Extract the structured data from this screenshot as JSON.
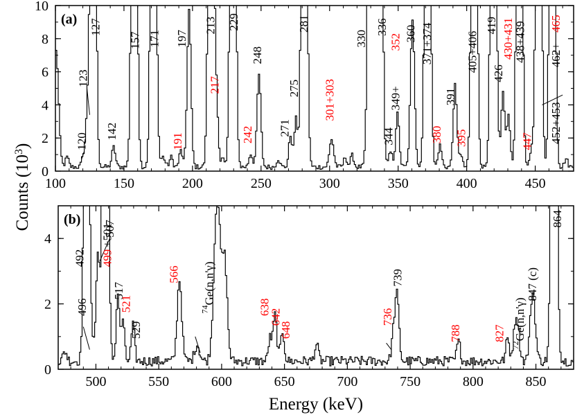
{
  "ylabel": "Counts (10",
  "ylabel_sup": "3",
  "ylabel_close": ")",
  "colors": {
    "axis": "#000000",
    "spectrum": "#000000",
    "red_label": "#ff0000",
    "black_label": "#000000"
  },
  "chart_data": [
    {
      "type": "line",
      "panel_label": "(a)",
      "xlabel": "",
      "ylabel": "Counts (10^3)",
      "xlim": [
        100,
        478
      ],
      "ylim": [
        0,
        10
      ],
      "xticks": [
        100,
        150,
        200,
        250,
        300,
        350,
        400,
        450
      ],
      "yticks": [
        0,
        2,
        4,
        6,
        8,
        10
      ],
      "series": [
        {
          "name": "gamma-ray spectrum (a)",
          "background": 0.25
        }
      ],
      "peaks": [
        {
          "e": 100,
          "h": 7.0,
          "w": 1.8
        },
        {
          "e": 108,
          "h": 0.6,
          "w": 1.2
        },
        {
          "e": 120,
          "h": 0.7,
          "w": 1.2
        },
        {
          "e": 123,
          "h": 3.2,
          "w": 1.3
        },
        {
          "e": 127,
          "h": 40,
          "w": 1.6
        },
        {
          "e": 142,
          "h": 1.2,
          "w": 1.3
        },
        {
          "e": 157,
          "h": 40,
          "w": 1.6
        },
        {
          "e": 171,
          "h": 40,
          "w": 1.6
        },
        {
          "e": 178,
          "h": 0.6,
          "w": 1.5
        },
        {
          "e": 184,
          "h": 0.6,
          "w": 1.2
        },
        {
          "e": 191,
          "h": 1.0,
          "w": 1.2
        },
        {
          "e": 197,
          "h": 9.5,
          "w": 1.4
        },
        {
          "e": 213,
          "h": 40,
          "w": 1.6
        },
        {
          "e": 217,
          "h": 3.7,
          "w": 1.2
        },
        {
          "e": 222,
          "h": 0.6,
          "w": 1.2
        },
        {
          "e": 229,
          "h": 40,
          "w": 1.6
        },
        {
          "e": 242,
          "h": 0.8,
          "w": 1.3
        },
        {
          "e": 248,
          "h": 5.6,
          "w": 1.4
        },
        {
          "e": 262,
          "h": 0.5,
          "w": 1.2
        },
        {
          "e": 271,
          "h": 1.9,
          "w": 1.2
        },
        {
          "e": 275,
          "h": 2.9,
          "w": 1.2
        },
        {
          "e": 281,
          "h": 40,
          "w": 1.6
        },
        {
          "e": 301,
          "h": 1.7,
          "w": 1.5
        },
        {
          "e": 311,
          "h": 0.6,
          "w": 1.2
        },
        {
          "e": 316,
          "h": 0.7,
          "w": 1.2
        },
        {
          "e": 330,
          "h": 40,
          "w": 1.8
        },
        {
          "e": 336,
          "h": 40,
          "w": 1.6
        },
        {
          "e": 344,
          "h": 0.9,
          "w": 1.3
        },
        {
          "e": 349,
          "h": 3.2,
          "w": 1.3
        },
        {
          "e": 360,
          "h": 8.8,
          "w": 1.5
        },
        {
          "e": 371,
          "h": 40,
          "w": 1.6
        },
        {
          "e": 380,
          "h": 1.3,
          "w": 1.3
        },
        {
          "e": 391,
          "h": 4.9,
          "w": 1.3
        },
        {
          "e": 395,
          "h": 0.8,
          "w": 1.2
        },
        {
          "e": 405,
          "h": 40,
          "w": 1.6
        },
        {
          "e": 419,
          "h": 40,
          "w": 1.6
        },
        {
          "e": 426,
          "h": 4.5,
          "w": 1.3
        },
        {
          "e": 430,
          "h": 3.1,
          "w": 1.2
        },
        {
          "e": 438,
          "h": 40,
          "w": 1.6
        },
        {
          "e": 447,
          "h": 1.0,
          "w": 1.2
        },
        {
          "e": 452,
          "h": 40,
          "w": 1.6
        },
        {
          "e": 462,
          "h": 40,
          "w": 1.6
        },
        {
          "e": 472,
          "h": 0.5,
          "w": 1.2
        }
      ],
      "annotations": [
        {
          "text": "120",
          "e": 120,
          "y": 1.8,
          "color": "black",
          "rot": -90
        },
        {
          "text": "123",
          "e": 121,
          "y": 5.6,
          "color": "black",
          "rot": -90
        },
        {
          "text": "127",
          "e": 130,
          "y": 8.7,
          "color": "black",
          "rot": -90
        },
        {
          "text": "142",
          "e": 142,
          "y": 2.4,
          "color": "black",
          "rot": -90
        },
        {
          "text": "157",
          "e": 159,
          "y": 7.9,
          "color": "black",
          "rot": -90
        },
        {
          "text": "171",
          "e": 173,
          "y": 8.0,
          "color": "black",
          "rot": -90
        },
        {
          "text": "191",
          "e": 190,
          "y": 1.8,
          "color": "red",
          "rot": -90
        },
        {
          "text": "197",
          "e": 193,
          "y": 8.0,
          "color": "black",
          "rot": -90
        },
        {
          "text": "213",
          "e": 214,
          "y": 8.8,
          "color": "black",
          "rot": -90
        },
        {
          "text": "217",
          "e": 217,
          "y": 5.2,
          "color": "red",
          "rot": -90
        },
        {
          "text": "229",
          "e": 231,
          "y": 9.0,
          "color": "black",
          "rot": -90
        },
        {
          "text": "242",
          "e": 241,
          "y": 2.2,
          "color": "red",
          "rot": -90
        },
        {
          "text": "248",
          "e": 248,
          "y": 7.0,
          "color": "black",
          "rot": -90
        },
        {
          "text": "271",
          "e": 268,
          "y": 2.6,
          "color": "black",
          "rot": -90
        },
        {
          "text": "275",
          "e": 275,
          "y": 5.0,
          "color": "black",
          "rot": -90
        },
        {
          "text": "281",
          "e": 282,
          "y": 8.9,
          "color": "black",
          "rot": -90
        },
        {
          "text": "301+303",
          "e": 301,
          "y": 4.3,
          "color": "red",
          "rot": -90
        },
        {
          "text": "330",
          "e": 324,
          "y": 8.0,
          "color": "black",
          "rot": -90
        },
        {
          "text": "336",
          "e": 339,
          "y": 8.7,
          "color": "black",
          "rot": -90
        },
        {
          "text": "344",
          "e": 344,
          "y": 2.1,
          "color": "black",
          "rot": -90
        },
        {
          "text": "349+",
          "e": 349,
          "y": 4.4,
          "color": "black",
          "rot": -90
        },
        {
          "text": "352",
          "e": 349,
          "y": 7.8,
          "color": "red",
          "rot": -90
        },
        {
          "text": "360",
          "e": 360,
          "y": 8.3,
          "color": "black",
          "rot": -90
        },
        {
          "text": "371+374",
          "e": 372,
          "y": 7.7,
          "color": "black",
          "rot": -90
        },
        {
          "text": "380",
          "e": 379,
          "y": 2.2,
          "color": "red",
          "rot": -90
        },
        {
          "text": "391",
          "e": 389,
          "y": 4.5,
          "color": "black",
          "rot": -90
        },
        {
          "text": "395",
          "e": 397,
          "y": 2.0,
          "color": "red",
          "rot": -90
        },
        {
          "text": "405+406",
          "e": 405,
          "y": 7.2,
          "color": "black",
          "rot": -90
        },
        {
          "text": "419",
          "e": 419,
          "y": 8.8,
          "color": "black",
          "rot": -90
        },
        {
          "text": "426",
          "e": 424,
          "y": 5.9,
          "color": "black",
          "rot": -90
        },
        {
          "text": "430+431",
          "e": 431,
          "y": 8.0,
          "color": "red",
          "rot": -90
        },
        {
          "text": "438+439",
          "e": 440,
          "y": 7.8,
          "color": "black",
          "rot": -90
        },
        {
          "text": "447",
          "e": 445,
          "y": 1.8,
          "color": "red",
          "rot": -90
        },
        {
          "text": "452+453",
          "e": 466,
          "y": 2.9,
          "color": "black",
          "rot": -90
        },
        {
          "text": "462+",
          "e": 466,
          "y": 7.0,
          "color": "black",
          "rot": -90
        },
        {
          "text": "465",
          "e": 466,
          "y": 8.9,
          "color": "red",
          "rot": -90
        }
      ],
      "leader_lines": [
        {
          "x1": 121,
          "y1": 1.2,
          "x2": 119,
          "y2": 0.7
        },
        {
          "x1": 123,
          "y1": 5.0,
          "x2": 125,
          "y2": 3.4
        },
        {
          "x1": 470,
          "y1": 4.6,
          "x2": 455,
          "y2": 4.0
        }
      ]
    },
    {
      "type": "line",
      "panel_label": "(b)",
      "xlabel": "Energy (keV)",
      "ylabel": "Counts (10^3)",
      "xlim": [
        470,
        880
      ],
      "ylim": [
        0,
        5
      ],
      "xticks": [
        500,
        550,
        600,
        650,
        700,
        750,
        800,
        850
      ],
      "yticks": [
        0,
        2,
        4
      ],
      "series": [
        {
          "name": "gamma-ray spectrum (b)",
          "background": 0.25
        }
      ],
      "peaks": [
        {
          "e": 475,
          "h": 0.3,
          "w": 1.5
        },
        {
          "e": 492,
          "h": 20,
          "w": 1.6
        },
        {
          "e": 496,
          "h": 0.8,
          "w": 1.3
        },
        {
          "e": 501,
          "h": 3.3,
          "w": 1.4
        },
        {
          "e": 507,
          "h": 20,
          "w": 1.8
        },
        {
          "e": 517,
          "h": 2.1,
          "w": 1.3
        },
        {
          "e": 521,
          "h": 1.3,
          "w": 1.2
        },
        {
          "e": 529,
          "h": 1.1,
          "w": 1.3
        },
        {
          "e": 566,
          "h": 2.5,
          "w": 1.8
        },
        {
          "e": 580,
          "h": 0.5,
          "w": 2.0
        },
        {
          "e": 596,
          "h": 5.0,
          "w": 2.5
        },
        {
          "e": 602,
          "h": 3.0,
          "w": 2.0
        },
        {
          "e": 638,
          "h": 0.7,
          "w": 1.3
        },
        {
          "e": 642,
          "h": 1.4,
          "w": 1.5
        },
        {
          "e": 648,
          "h": 0.9,
          "w": 1.4
        },
        {
          "e": 675,
          "h": 0.5,
          "w": 1.5
        },
        {
          "e": 736,
          "h": 0.7,
          "w": 1.4
        },
        {
          "e": 739,
          "h": 2.0,
          "w": 1.6
        },
        {
          "e": 788,
          "h": 0.6,
          "w": 1.4
        },
        {
          "e": 827,
          "h": 0.7,
          "w": 1.3
        },
        {
          "e": 834,
          "h": 1.4,
          "w": 2.0
        },
        {
          "e": 847,
          "h": 2.1,
          "w": 2.0
        },
        {
          "e": 864,
          "h": 20,
          "w": 1.8
        }
      ],
      "annotations": [
        {
          "text": "492",
          "e": 488,
          "y": 3.4,
          "color": "black",
          "rot": -90
        },
        {
          "text": "496",
          "e": 490,
          "y": 1.9,
          "color": "black",
          "rot": -90
        },
        {
          "text": "507",
          "e": 512,
          "y": 4.3,
          "color": "black",
          "rot": -90
        },
        {
          "text": "499",
          "e": 510,
          "y": 3.4,
          "color": "red",
          "rot": -90
        },
        {
          "text": "+501",
          "e": 510,
          "y": 4.1,
          "color": "black",
          "rot": -90
        },
        {
          "text": "517",
          "e": 519,
          "y": 2.4,
          "color": "black",
          "rot": -90
        },
        {
          "text": "521",
          "e": 525,
          "y": 2.0,
          "color": "red",
          "rot": -90
        },
        {
          "text": "529",
          "e": 533,
          "y": 1.2,
          "color": "black",
          "rot": -90
        },
        {
          "text": "566",
          "e": 563,
          "y": 2.9,
          "color": "red",
          "rot": -90
        },
        {
          "text": "638",
          "e": 635,
          "y": 1.9,
          "color": "red",
          "rot": -90
        },
        {
          "text": "642",
          "e": 644,
          "y": 1.6,
          "color": "red",
          "rot": -90
        },
        {
          "text": "648",
          "e": 652,
          "y": 1.2,
          "color": "red",
          "rot": -90
        },
        {
          "text": "736",
          "e": 733,
          "y": 1.6,
          "color": "red",
          "rot": -90
        },
        {
          "text": "739",
          "e": 741,
          "y": 2.8,
          "color": "black",
          "rot": -90
        },
        {
          "text": "788",
          "e": 787,
          "y": 1.1,
          "color": "red",
          "rot": -90
        },
        {
          "text": "827",
          "e": 822,
          "y": 1.1,
          "color": "red",
          "rot": -90
        },
        {
          "text": "847 (c)",
          "e": 848,
          "y": 2.6,
          "color": "black",
          "rot": -90
        },
        {
          "text": "864",
          "e": 868,
          "y": 4.6,
          "color": "black",
          "rot": -90
        }
      ],
      "leader_lines": [
        {
          "x1": 490,
          "y1": 1.3,
          "x2": 495,
          "y2": 0.6
        },
        {
          "x1": 511,
          "y1": 4.0,
          "x2": 503,
          "y2": 3.3
        },
        {
          "x1": 579,
          "y1": 1.0,
          "x2": 583,
          "y2": 0.5
        },
        {
          "x1": 731,
          "y1": 0.8,
          "x2": 735,
          "y2": 0.6
        }
      ],
      "ge_labels": [
        {
          "prefix": "74",
          "text": "Ge(n,n'γ)",
          "e": 591,
          "y": 2.5,
          "rot": -90
        },
        {
          "prefix": "72",
          "text": "Ge(n,n'γ)",
          "e": 838,
          "y": 1.4,
          "rot": -90
        }
      ]
    }
  ]
}
